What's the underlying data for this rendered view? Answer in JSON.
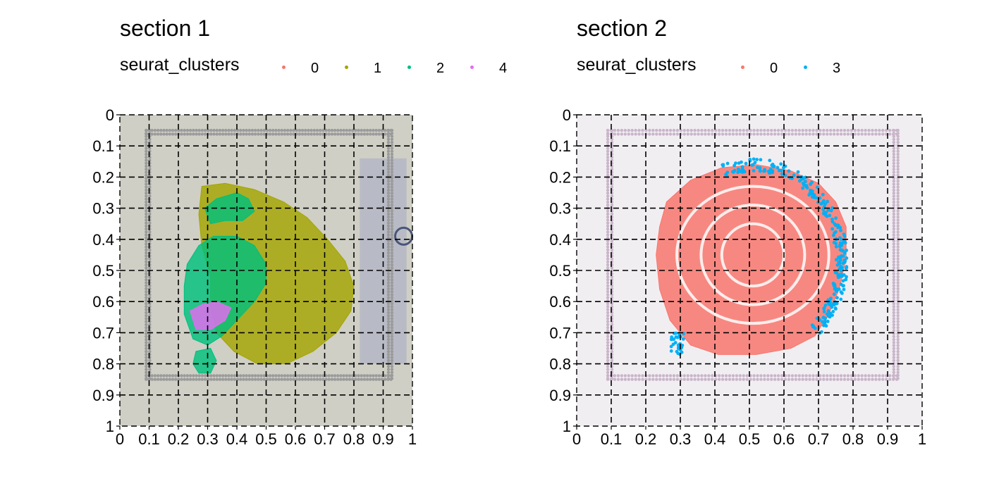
{
  "chart_data": [
    {
      "type": "scatter",
      "title": "section 1",
      "legend": {
        "title": "seurat_clusters",
        "placement": "top",
        "entries": [
          {
            "label": "0",
            "color": "#F8766D"
          },
          {
            "label": "1",
            "color": "#A3A500"
          },
          {
            "label": "2",
            "color": "#00BF7D"
          },
          {
            "label": "4",
            "color": "#E76BF3"
          }
        ]
      },
      "x_ticks": [
        "0",
        "0.1",
        "0.2",
        "0.3",
        "0.4",
        "0.5",
        "0.6",
        "0.7",
        "0.8",
        "0.9",
        "1"
      ],
      "y_ticks": [
        "0",
        "0.1",
        "0.2",
        "0.3",
        "0.4",
        "0.5",
        "0.6",
        "0.7",
        "0.8",
        "0.9",
        "1"
      ],
      "xlim": [
        0,
        1
      ],
      "ylim": [
        0,
        1
      ],
      "y_reversed": true,
      "grid": "dashed",
      "background": "H&E tissue image (mouse brain hemisphere)",
      "regions": [
        {
          "cluster": "1",
          "color": "#A3A500",
          "points": [
            [
              0.28,
              0.23
            ],
            [
              0.36,
              0.22
            ],
            [
              0.46,
              0.24
            ],
            [
              0.56,
              0.28
            ],
            [
              0.64,
              0.33
            ],
            [
              0.71,
              0.4
            ],
            [
              0.77,
              0.47
            ],
            [
              0.8,
              0.55
            ],
            [
              0.79,
              0.63
            ],
            [
              0.74,
              0.7
            ],
            [
              0.66,
              0.76
            ],
            [
              0.57,
              0.8
            ],
            [
              0.47,
              0.8
            ],
            [
              0.39,
              0.76
            ],
            [
              0.33,
              0.7
            ],
            [
              0.31,
              0.62
            ],
            [
              0.31,
              0.52
            ],
            [
              0.28,
              0.42
            ],
            [
              0.27,
              0.32
            ]
          ]
        },
        {
          "cluster": "2",
          "color": "#00BF7D",
          "points": [
            [
              0.27,
              0.42
            ],
            [
              0.32,
              0.39
            ],
            [
              0.4,
              0.39
            ],
            [
              0.46,
              0.42
            ],
            [
              0.5,
              0.48
            ],
            [
              0.5,
              0.54
            ],
            [
              0.46,
              0.6
            ],
            [
              0.4,
              0.66
            ],
            [
              0.35,
              0.71
            ],
            [
              0.3,
              0.74
            ],
            [
              0.25,
              0.72
            ],
            [
              0.22,
              0.64
            ],
            [
              0.22,
              0.55
            ],
            [
              0.23,
              0.48
            ]
          ]
        },
        {
          "cluster": "2",
          "color": "#00BF7D",
          "points": [
            [
              0.29,
              0.3
            ],
            [
              0.33,
              0.27
            ],
            [
              0.4,
              0.25
            ],
            [
              0.44,
              0.27
            ],
            [
              0.46,
              0.31
            ],
            [
              0.42,
              0.34
            ],
            [
              0.36,
              0.34
            ],
            [
              0.31,
              0.35
            ]
          ]
        },
        {
          "cluster": "2",
          "color": "#00BF7D",
          "points": [
            [
              0.26,
              0.76
            ],
            [
              0.31,
              0.75
            ],
            [
              0.33,
              0.79
            ],
            [
              0.31,
              0.83
            ],
            [
              0.27,
              0.83
            ],
            [
              0.25,
              0.8
            ]
          ]
        },
        {
          "cluster": "4",
          "color": "#E76BF3",
          "points": [
            [
              0.24,
              0.63
            ],
            [
              0.28,
              0.61
            ],
            [
              0.33,
              0.6
            ],
            [
              0.38,
              0.62
            ],
            [
              0.36,
              0.66
            ],
            [
              0.31,
              0.69
            ],
            [
              0.26,
              0.69
            ]
          ]
        }
      ]
    },
    {
      "type": "scatter",
      "title": "section 2",
      "legend": {
        "title": "seurat_clusters",
        "placement": "top",
        "entries": [
          {
            "label": "0",
            "color": "#F8766D"
          },
          {
            "label": "3",
            "color": "#00B0F6"
          }
        ]
      },
      "x_ticks": [
        "0",
        "0.1",
        "0.2",
        "0.3",
        "0.4",
        "0.5",
        "0.6",
        "0.7",
        "0.8",
        "0.9",
        "1"
      ],
      "y_ticks": [
        "0",
        "0.1",
        "0.2",
        "0.3",
        "0.4",
        "0.5",
        "0.6",
        "0.7",
        "0.8",
        "0.9",
        "1"
      ],
      "xlim": [
        0,
        1
      ],
      "ylim": [
        0,
        1
      ],
      "y_reversed": true,
      "grid": "dashed",
      "background": "H&E tissue image (swiss roll)",
      "regions": [
        {
          "cluster": "0",
          "color": "#F8766D",
          "points": [
            [
              0.26,
              0.28
            ],
            [
              0.33,
              0.21
            ],
            [
              0.42,
              0.17
            ],
            [
              0.52,
              0.16
            ],
            [
              0.62,
              0.18
            ],
            [
              0.7,
              0.22
            ],
            [
              0.75,
              0.28
            ],
            [
              0.78,
              0.36
            ],
            [
              0.78,
              0.46
            ],
            [
              0.76,
              0.56
            ],
            [
              0.73,
              0.64
            ],
            [
              0.69,
              0.71
            ],
            [
              0.62,
              0.75
            ],
            [
              0.52,
              0.77
            ],
            [
              0.41,
              0.77
            ],
            [
              0.33,
              0.74
            ],
            [
              0.27,
              0.66
            ],
            [
              0.24,
              0.56
            ],
            [
              0.23,
              0.45
            ],
            [
              0.24,
              0.36
            ]
          ]
        }
      ],
      "ring_points": {
        "cluster": "3",
        "color": "#00B0F6"
      }
    }
  ]
}
